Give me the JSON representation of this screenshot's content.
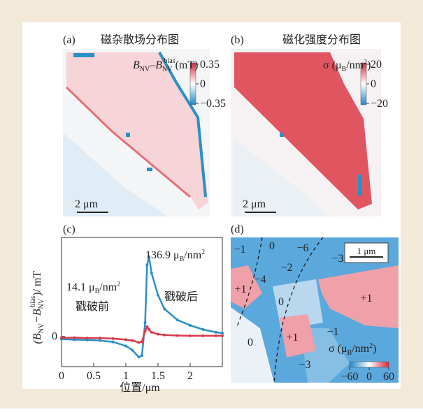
{
  "panel_a": {
    "label": "(a)",
    "title": "磁杂散场分布图",
    "colorbar_title": [
      "B",
      "NV",
      "–B",
      "NV",
      "bias",
      "(mT)"
    ],
    "colorbar_ticks": [
      0.35,
      0,
      {
        "value": -0.35,
        "label": "−0.35"
      }
    ],
    "scale_bar": "2 μm"
  },
  "panel_b": {
    "label": "(b)",
    "title": "磁化强度分布图",
    "colorbar_title": [
      "σ (μ",
      "B",
      "/nm",
      "2",
      ")"
    ],
    "colorbar_ticks": [
      20,
      0,
      {
        "value": -20,
        "label": "−20"
      }
    ],
    "scale_bar": "2 μm"
  },
  "chart_data": {
    "type": "line",
    "label": "(c)",
    "y_label": [
      "(B",
      "NV",
      "−B",
      "NV",
      "bias",
      ")/ mT"
    ],
    "x_label": "位置/μm",
    "xlim": [
      0,
      2.5
    ],
    "ylim": [
      -1.1,
      3.6
    ],
    "xticks": [
      0,
      0.5,
      1,
      1.5,
      2
    ],
    "yticks": [
      0
    ],
    "x": [
      0,
      0.2,
      0.4,
      0.6,
      0.8,
      1.0,
      1.1,
      1.2,
      1.25,
      1.3,
      1.33,
      1.36,
      1.4,
      1.5,
      1.6,
      1.8,
      2.0,
      2.2,
      2.4,
      2.5
    ],
    "series": [
      {
        "name": "戳破后",
        "color": "#2a8fc8",
        "values": [
          -0.1,
          -0.12,
          -0.13,
          -0.15,
          -0.2,
          -0.35,
          -0.5,
          -0.75,
          -0.7,
          0.5,
          2.6,
          2.9,
          2.3,
          1.5,
          1.0,
          0.6,
          0.4,
          0.25,
          0.15,
          0.12
        ]
      },
      {
        "name": "戳破前",
        "color": "#d93a4a",
        "values": [
          -0.05,
          -0.05,
          -0.06,
          -0.06,
          -0.08,
          -0.12,
          -0.15,
          -0.22,
          -0.2,
          0.2,
          0.35,
          0.25,
          0.15,
          0.08,
          0.05,
          0.03,
          0.02,
          0.02,
          0.02,
          0.02
        ]
      }
    ],
    "annotations": {
      "red_value": [
        "14.1 μ",
        "B",
        "/nm",
        "2"
      ],
      "blue_value": [
        "136.9 μ",
        "B",
        "/nm",
        "2"
      ]
    }
  },
  "panel_d": {
    "label": "(d)",
    "domains": [
      "−1",
      "0",
      "−6",
      "−2",
      "−3",
      "+1",
      "−4",
      "0",
      "+1",
      "0",
      "+1",
      "−1",
      "−3"
    ],
    "scale_bar": "1 μm",
    "colorbar_title": [
      "σ (μ",
      "B",
      "/nm",
      "2",
      ")"
    ],
    "colorbar_ticks": [
      {
        "value": -60,
        "label": "−60"
      },
      0,
      60
    ]
  }
}
